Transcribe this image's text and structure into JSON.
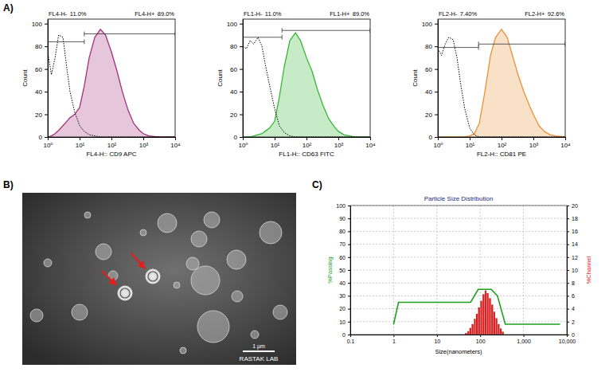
{
  "panel_labels": [
    "A)",
    "B)",
    "C)"
  ],
  "image": {
    "scale_bar": "1 μm",
    "watermark": "RASTAK LAB"
  },
  "chart_data": [
    {
      "type": "line",
      "x_label": "FL4-H:: CD9 APC",
      "y_label": "Count",
      "log": "x",
      "xlim": [
        1,
        10000
      ],
      "ylim": [
        0,
        104
      ],
      "xticks": [
        {
          "value": 1,
          "label": "10⁰"
        },
        {
          "value": 10,
          "label": "10¹"
        },
        {
          "value": 100,
          "label": "10²"
        },
        {
          "value": 1000,
          "label": "10³"
        },
        {
          "value": 10000,
          "label": "10⁴"
        }
      ],
      "yticks": [
        0,
        20,
        40,
        60,
        80,
        100
      ],
      "x": [
        1,
        1.3,
        1.7,
        2.2,
        3,
        4,
        5,
        7,
        10,
        14,
        20,
        30,
        45,
        65,
        100,
        150,
        220,
        330,
        500,
        750,
        1000,
        1500,
        2200,
        3300,
        5000,
        10000
      ],
      "series": [
        {
          "color": "#000000",
          "line_style": "dotted",
          "values": [
            75,
            55,
            70,
            90,
            88,
            60,
            40,
            22,
            10,
            5,
            2,
            1,
            0,
            0,
            0,
            0,
            0,
            0,
            0,
            0,
            0,
            0,
            0,
            0,
            0,
            0
          ]
        },
        {
          "type": "area",
          "color": "#a2327a",
          "values": [
            0,
            1,
            3,
            6,
            10,
            14,
            17,
            20,
            26,
            45,
            70,
            88,
            95,
            90,
            75,
            58,
            40,
            24,
            12,
            6,
            3,
            1,
            0.5,
            0,
            0,
            0
          ]
        }
      ],
      "gates": [
        {
          "name": "FL4-H-",
          "percent": "11.0%",
          "xrange": [
            1,
            14
          ],
          "y": 84
        },
        {
          "name": "FL4-H+",
          "percent": "89.0%",
          "xrange": [
            14,
            10000
          ],
          "y": 91
        }
      ]
    },
    {
      "type": "line",
      "x_label": "FL1-H:: CD63 FITC",
      "y_label": "Count",
      "log": "x",
      "xlim": [
        1,
        10000
      ],
      "ylim": [
        0,
        104
      ],
      "xticks": [
        {
          "value": 1,
          "label": "10⁰"
        },
        {
          "value": 10,
          "label": "10¹"
        },
        {
          "value": 100,
          "label": "10²"
        },
        {
          "value": 1000,
          "label": "10³"
        },
        {
          "value": 10000,
          "label": "10⁴"
        }
      ],
      "yticks": [
        0,
        20,
        40,
        60,
        80,
        100
      ],
      "x": [
        1,
        1.3,
        1.7,
        2.2,
        3,
        4,
        5,
        7,
        10,
        14,
        20,
        30,
        45,
        65,
        100,
        150,
        220,
        330,
        500,
        750,
        1000,
        1500,
        2200,
        3300,
        5000,
        10000
      ],
      "series": [
        {
          "color": "#000000",
          "line_style": "dotted",
          "values": [
            80,
            78,
            85,
            82,
            88,
            80,
            65,
            45,
            25,
            10,
            4,
            1,
            0,
            0,
            0,
            0,
            0,
            0,
            0,
            0,
            0,
            0,
            0,
            0,
            0,
            0
          ]
        },
        {
          "type": "area",
          "color": "#36b836",
          "values": [
            0,
            0,
            0,
            1,
            2,
            3,
            5,
            8,
            14,
            35,
            62,
            85,
            92,
            85,
            70,
            58,
            42,
            28,
            16,
            9,
            5,
            2,
            1,
            0,
            0,
            0
          ]
        }
      ],
      "gates": [
        {
          "name": "FL1-H-",
          "percent": "11.0%",
          "xrange": [
            1,
            17
          ],
          "y": 88
        },
        {
          "name": "FL1-H+",
          "percent": "89.0%",
          "xrange": [
            17,
            10000
          ],
          "y": 94
        }
      ]
    },
    {
      "type": "line",
      "x_label": "FL2-H:: CD81 PE",
      "y_label": "Count",
      "log": "x",
      "xlim": [
        1,
        10000
      ],
      "ylim": [
        0,
        104
      ],
      "xticks": [
        {
          "value": 1,
          "label": "10⁰"
        },
        {
          "value": 10,
          "label": "10¹"
        },
        {
          "value": 100,
          "label": "10²"
        },
        {
          "value": 1000,
          "label": "10³"
        },
        {
          "value": 10000,
          "label": "10⁴"
        }
      ],
      "yticks": [
        0,
        20,
        40,
        60,
        80,
        100
      ],
      "x": [
        1,
        1.3,
        1.7,
        2.2,
        3,
        4,
        5,
        7,
        10,
        14,
        20,
        30,
        45,
        65,
        100,
        150,
        220,
        330,
        500,
        750,
        1000,
        1500,
        2200,
        3300,
        5000,
        10000
      ],
      "series": [
        {
          "color": "#000000",
          "line_style": "dotted",
          "values": [
            78,
            72,
            82,
            88,
            86,
            70,
            50,
            25,
            8,
            2,
            0,
            0,
            0,
            0,
            0,
            0,
            0,
            0,
            0,
            0,
            0,
            0,
            0,
            0,
            0,
            0
          ]
        },
        {
          "type": "area",
          "color": "#e8923a",
          "values": [
            0,
            0,
            0,
            0,
            0,
            0,
            0,
            0,
            1,
            3,
            12,
            40,
            72,
            88,
            95,
            88,
            72,
            55,
            40,
            28,
            20,
            10,
            5,
            2,
            1,
            0
          ]
        }
      ],
      "gates": [
        {
          "name": "FL2-H-",
          "percent": "7.40%",
          "xrange": [
            1,
            19
          ],
          "y": 79
        },
        {
          "name": "FL2-H+",
          "percent": "92.6%",
          "xrange": [
            19,
            10000
          ],
          "y": 82
        }
      ]
    },
    {
      "type": "histogram",
      "title": "Particle Size Distribution",
      "x_label": "Size(nanometers)",
      "y_label": "%Passing",
      "y2_label": "%Channel",
      "log": "x",
      "grid": true,
      "xlim": [
        0.1,
        10000
      ],
      "ylim": [
        0,
        100
      ],
      "y2lim": [
        0,
        20
      ],
      "xticks": [
        0.1,
        1,
        10,
        100,
        {
          "value": 1000,
          "label": "1,000"
        },
        {
          "value": 10000,
          "label": "10,000"
        }
      ],
      "yticks": [
        0,
        10,
        20,
        30,
        40,
        50,
        60,
        70,
        80,
        90,
        100
      ],
      "y2ticks": [
        0,
        2,
        4,
        6,
        8,
        10,
        12,
        14,
        16,
        18,
        20
      ],
      "series": [
        {
          "type": "line",
          "color": "#1e9e1e",
          "x": [
            1,
            1.3,
            60,
            90,
            180,
            250,
            380,
            7000
          ],
          "values": [
            8,
            25,
            25,
            35,
            35,
            30,
            8,
            8
          ]
        },
        {
          "type": "bar",
          "axis": "y2",
          "color": "#e31a1c",
          "bins": [
            44,
            50,
            56,
            63,
            71,
            79,
            89,
            100,
            112,
            126,
            141,
            158,
            178,
            200,
            224,
            251,
            282,
            316,
            355
          ],
          "values": [
            0.2,
            0.5,
            1,
            1.6,
            2.4,
            3.2,
            4.2,
            5.2,
            6.2,
            6.8,
            6.4,
            5.6,
            4.6,
            3.5,
            2.5,
            1.6,
            0.9,
            0.4
          ]
        }
      ]
    }
  ]
}
